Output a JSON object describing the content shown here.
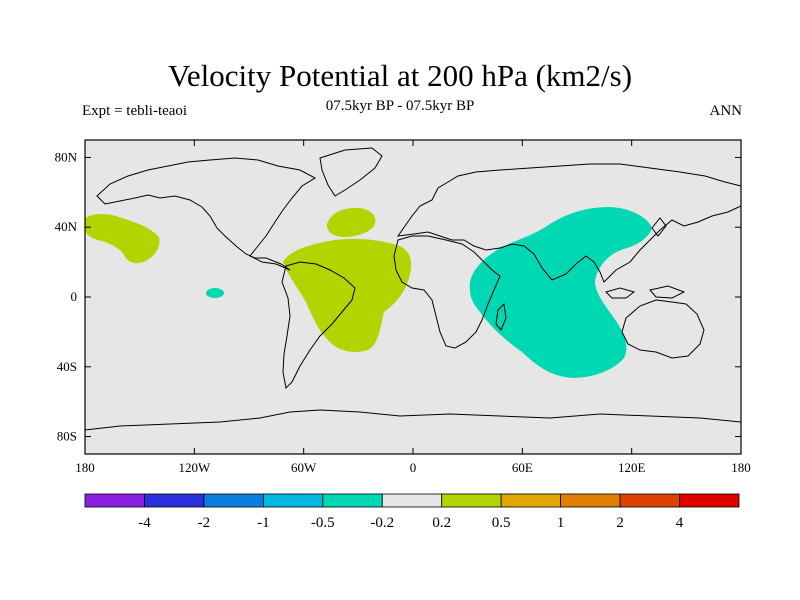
{
  "map": {
    "title": "Velocity Potential at 200 hPa (km2/s)",
    "subtitle": "07.5kyr BP - 07.5kyr BP",
    "left_label": "Expt = tebli-teaoi",
    "right_label": "ANN",
    "lat_ticks": [
      "80N",
      "40N",
      "0",
      "40S",
      "80S"
    ],
    "lon_ticks": [
      "180",
      "120W",
      "60W",
      "0",
      "60E",
      "120E",
      "180"
    ],
    "colors": {
      "background": "#e6e6e6",
      "positive_region": "#b4d400",
      "negative_region": "#00d8b4",
      "land_outline": "#000000"
    }
  },
  "colorbar": {
    "colors": [
      "#8a1fe0",
      "#2b2fe0",
      "#0a7fe0",
      "#00b8e0",
      "#00d8b4",
      "#e6e6e6",
      "#b4d400",
      "#e0a800",
      "#e08000",
      "#e04000",
      "#e00000"
    ],
    "labels": [
      "-4",
      "-2",
      "-1",
      "-0.5",
      "-0.2",
      "0.2",
      "0.5",
      "1",
      "2",
      "4"
    ]
  }
}
